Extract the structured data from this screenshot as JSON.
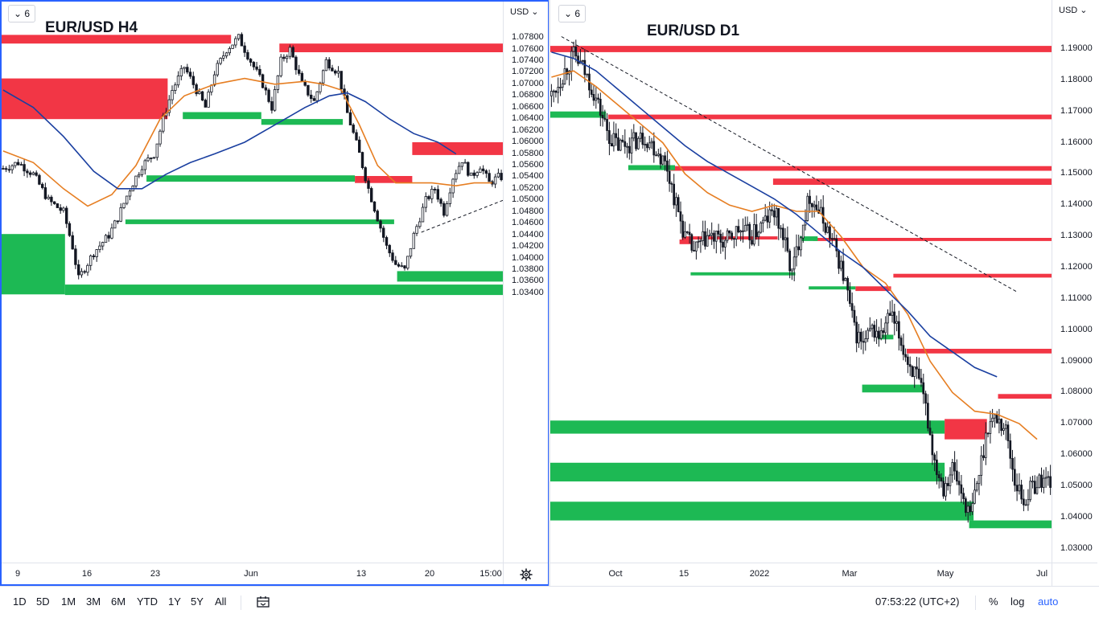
{
  "panels": {
    "left": {
      "interval": "6",
      "title": "EUR/USD H4",
      "currency": "USD",
      "y_ticks": [
        "1.07800",
        "1.07600",
        "1.07400",
        "1.07200",
        "1.07000",
        "1.06800",
        "1.06600",
        "1.06400",
        "1.06200",
        "1.06000",
        "1.05800",
        "1.05600",
        "1.05400",
        "1.05200",
        "1.05000",
        "1.04800",
        "1.04600",
        "1.04400",
        "1.04200",
        "1.04000",
        "1.03800",
        "1.03600",
        "1.03400"
      ],
      "x_ticks": [
        "9",
        "16",
        "23",
        "Jun",
        "13",
        "20",
        "15:00"
      ]
    },
    "right": {
      "interval": "6",
      "title": "EUR/USD D1",
      "currency": "USD",
      "y_ticks": [
        "1.19000",
        "1.18000",
        "1.17000",
        "1.16000",
        "1.15000",
        "1.14000",
        "1.13000",
        "1.12000",
        "1.11000",
        "1.10000",
        "1.09000",
        "1.08000",
        "1.07000",
        "1.06000",
        "1.05000",
        "1.04000",
        "1.03000"
      ],
      "x_ticks": [
        "Oct",
        "15",
        "2022",
        "Mar",
        "May",
        "Jul"
      ]
    }
  },
  "chart_data": [
    {
      "type": "candlestick",
      "title": "EUR/USD H4",
      "ylim": [
        1.0335,
        1.079
      ],
      "x_ticks": [
        "9",
        "16",
        "23",
        "Jun",
        "13",
        "20",
        "15:00"
      ],
      "price_path": [
        [
          0,
          1.0555
        ],
        [
          5,
          1.0565
        ],
        [
          10,
          1.0545
        ],
        [
          15,
          1.05
        ],
        [
          20,
          1.048
        ],
        [
          23,
          1.042
        ],
        [
          25,
          1.0365
        ],
        [
          30,
          1.041
        ],
        [
          35,
          1.044
        ],
        [
          38,
          1.047
        ],
        [
          42,
          1.052
        ],
        [
          46,
          1.056
        ],
        [
          50,
          1.058
        ],
        [
          53,
          1.064
        ],
        [
          56,
          1.069
        ],
        [
          60,
          1.073
        ],
        [
          63,
          1.07
        ],
        [
          67,
          1.066
        ],
        [
          70,
          1.072
        ],
        [
          74,
          1.076
        ],
        [
          78,
          1.078
        ],
        [
          82,
          1.074
        ],
        [
          86,
          1.07
        ],
        [
          89,
          1.066
        ],
        [
          92,
          1.074
        ],
        [
          95,
          1.076
        ],
        [
          99,
          1.07
        ],
        [
          103,
          1.067
        ],
        [
          107,
          1.074
        ],
        [
          111,
          1.072
        ],
        [
          114,
          1.065
        ],
        [
          118,
          1.058
        ],
        [
          121,
          1.052
        ],
        [
          124,
          1.047
        ],
        [
          127,
          1.042
        ],
        [
          130,
          1.039
        ],
        [
          133,
          1.038
        ],
        [
          136,
          1.044
        ],
        [
          140,
          1.05
        ],
        [
          143,
          1.052
        ],
        [
          146,
          1.048
        ],
        [
          149,
          1.054
        ],
        [
          152,
          1.057
        ],
        [
          155,
          1.054
        ],
        [
          158,
          1.056
        ],
        [
          161,
          1.053
        ],
        [
          164,
          1.054
        ]
      ],
      "moving_averages": [
        {
          "color": "#e67e22",
          "values": [
            [
              0,
              1.0585
            ],
            [
              10,
              1.0565
            ],
            [
              20,
              1.052
            ],
            [
              28,
              1.049
            ],
            [
              36,
              1.051
            ],
            [
              44,
              1.056
            ],
            [
              52,
              1.064
            ],
            [
              60,
              1.068
            ],
            [
              70,
              1.07
            ],
            [
              80,
              1.071
            ],
            [
              90,
              1.07
            ],
            [
              100,
              1.0705
            ],
            [
              106,
              1.07
            ],
            [
              112,
              1.069
            ],
            [
              118,
              1.063
            ],
            [
              124,
              1.056
            ],
            [
              130,
              1.053
            ],
            [
              136,
              1.053
            ],
            [
              142,
              1.053
            ],
            [
              150,
              1.0525
            ],
            [
              156,
              1.053
            ],
            [
              162,
              1.053
            ]
          ]
        },
        {
          "color": "#1a3fa0",
          "values": [
            [
              0,
              1.069
            ],
            [
              10,
              1.066
            ],
            [
              20,
              1.061
            ],
            [
              30,
              1.055
            ],
            [
              38,
              1.052
            ],
            [
              46,
              1.052
            ],
            [
              54,
              1.0545
            ],
            [
              62,
              1.0565
            ],
            [
              70,
              1.058
            ],
            [
              80,
              1.06
            ],
            [
              90,
              1.063
            ],
            [
              100,
              1.066
            ],
            [
              108,
              1.068
            ],
            [
              114,
              1.0685
            ],
            [
              120,
              1.067
            ],
            [
              128,
              1.064
            ],
            [
              136,
              1.0615
            ],
            [
              144,
              1.06
            ],
            [
              150,
              1.058
            ]
          ]
        }
      ],
      "zones": [
        {
          "kind": "supply",
          "y1": 1.0785,
          "y2": 1.077,
          "x1": 0,
          "x2": 76
        },
        {
          "kind": "supply",
          "y1": 1.077,
          "y2": 1.0755,
          "x1": 92,
          "x2": 166
        },
        {
          "kind": "supply",
          "y1": 1.071,
          "y2": 1.064,
          "x1": 0,
          "x2": 55
        },
        {
          "kind": "supply",
          "y1": 1.06,
          "y2": 1.0578,
          "x1": 136,
          "x2": 166
        },
        {
          "kind": "supply",
          "y1": 1.0542,
          "y2": 1.053,
          "x1": 117,
          "x2": 136
        },
        {
          "kind": "demand",
          "y1": 1.0652,
          "y2": 1.064,
          "x1": 60,
          "x2": 86
        },
        {
          "kind": "demand",
          "y1": 1.064,
          "y2": 1.063,
          "x1": 86,
          "x2": 113
        },
        {
          "kind": "demand",
          "y1": 1.0543,
          "y2": 1.0532,
          "x1": 48,
          "x2": 117
        },
        {
          "kind": "demand",
          "y1": 1.0467,
          "y2": 1.0459,
          "x1": 41,
          "x2": 130
        },
        {
          "kind": "demand",
          "y1": 1.0442,
          "y2": 1.0338,
          "x1": 0,
          "x2": 21
        },
        {
          "kind": "demand",
          "y1": 1.0378,
          "y2": 1.036,
          "x1": 131,
          "x2": 166
        },
        {
          "kind": "demand",
          "y1": 1.0355,
          "y2": 1.0337,
          "x1": 21,
          "x2": 166
        }
      ],
      "trendlines": [
        {
          "x1": 139,
          "y1": 1.0445,
          "x2": 166,
          "y2": 1.05,
          "style": "dashed"
        }
      ],
      "n_candles": 166
    },
    {
      "type": "candlestick",
      "title": "EUR/USD D1",
      "ylim": [
        1.026,
        1.196
      ],
      "x_ticks": [
        "Oct",
        "15",
        "2022",
        "Mar",
        "May",
        "Jul"
      ],
      "price_path": [
        [
          0,
          1.175
        ],
        [
          6,
          1.183
        ],
        [
          10,
          1.188
        ],
        [
          14,
          1.184
        ],
        [
          18,
          1.178
        ],
        [
          22,
          1.17
        ],
        [
          26,
          1.162
        ],
        [
          30,
          1.159
        ],
        [
          36,
          1.16
        ],
        [
          42,
          1.162
        ],
        [
          48,
          1.157
        ],
        [
          52,
          1.152
        ],
        [
          56,
          1.14
        ],
        [
          60,
          1.13
        ],
        [
          64,
          1.125
        ],
        [
          70,
          1.13
        ],
        [
          78,
          1.128
        ],
        [
          84,
          1.132
        ],
        [
          90,
          1.13
        ],
        [
          96,
          1.135
        ],
        [
          100,
          1.138
        ],
        [
          104,
          1.13
        ],
        [
          108,
          1.118
        ],
        [
          112,
          1.132
        ],
        [
          116,
          1.143
        ],
        [
          120,
          1.138
        ],
        [
          124,
          1.132
        ],
        [
          128,
          1.125
        ],
        [
          132,
          1.115
        ],
        [
          136,
          1.1
        ],
        [
          140,
          1.095
        ],
        [
          144,
          1.1
        ],
        [
          148,
          1.098
        ],
        [
          152,
          1.105
        ],
        [
          156,
          1.098
        ],
        [
          160,
          1.09
        ],
        [
          164,
          1.085
        ],
        [
          168,
          1.075
        ],
        [
          172,
          1.058
        ],
        [
          176,
          1.05
        ],
        [
          180,
          1.056
        ],
        [
          184,
          1.048
        ],
        [
          188,
          1.04
        ],
        [
          192,
          1.054
        ],
        [
          196,
          1.07
        ],
        [
          200,
          1.072
        ],
        [
          204,
          1.068
        ],
        [
          208,
          1.052
        ],
        [
          212,
          1.045
        ],
        [
          216,
          1.05
        ],
        [
          220,
          1.052
        ]
      ],
      "moving_averages": [
        {
          "color": "#e67e22",
          "values": [
            [
              0,
              1.181
            ],
            [
              10,
              1.183
            ],
            [
              20,
              1.178
            ],
            [
              30,
              1.172
            ],
            [
              40,
              1.166
            ],
            [
              50,
              1.16
            ],
            [
              60,
              1.15
            ],
            [
              70,
              1.144
            ],
            [
              80,
              1.14
            ],
            [
              90,
              1.138
            ],
            [
              100,
              1.14
            ],
            [
              110,
              1.138
            ],
            [
              120,
              1.138
            ],
            [
              130,
              1.13
            ],
            [
              140,
              1.12
            ],
            [
              150,
              1.115
            ],
            [
              160,
              1.105
            ],
            [
              170,
              1.09
            ],
            [
              180,
              1.08
            ],
            [
              190,
              1.074
            ],
            [
              200,
              1.073
            ],
            [
              210,
              1.07
            ],
            [
              218,
              1.065
            ]
          ]
        },
        {
          "color": "#1a3fa0",
          "values": [
            [
              0,
              1.189
            ],
            [
              10,
              1.187
            ],
            [
              20,
              1.183
            ],
            [
              30,
              1.177
            ],
            [
              40,
              1.171
            ],
            [
              50,
              1.165
            ],
            [
              60,
              1.159
            ],
            [
              70,
              1.154
            ],
            [
              80,
              1.15
            ],
            [
              90,
              1.146
            ],
            [
              100,
              1.142
            ],
            [
              110,
              1.137
            ],
            [
              120,
              1.131
            ],
            [
              130,
              1.125
            ],
            [
              140,
              1.12
            ],
            [
              150,
              1.113
            ],
            [
              160,
              1.106
            ],
            [
              170,
              1.098
            ],
            [
              180,
              1.093
            ],
            [
              190,
              1.088
            ],
            [
              200,
              1.085
            ]
          ]
        }
      ],
      "zones": [
        {
          "kind": "supply",
          "y1": 1.191,
          "y2": 1.189,
          "x1": 0,
          "x2": 225
        },
        {
          "kind": "supply",
          "y1": 1.169,
          "y2": 1.1675,
          "x1": 26,
          "x2": 225
        },
        {
          "kind": "supply",
          "y1": 1.1525,
          "y2": 1.151,
          "x1": 54,
          "x2": 225
        },
        {
          "kind": "supply",
          "y1": 1.1485,
          "y2": 1.1465,
          "x1": 100,
          "x2": 225
        },
        {
          "kind": "supply",
          "y1": 1.1295,
          "y2": 1.1285,
          "x1": 118,
          "x2": 225
        },
        {
          "kind": "supply",
          "y1": 1.118,
          "y2": 1.1168,
          "x1": 154,
          "x2": 225
        },
        {
          "kind": "supply",
          "y1": 1.114,
          "y2": 1.1125,
          "x1": 137,
          "x2": 153
        },
        {
          "kind": "supply",
          "y1": 1.094,
          "y2": 1.0925,
          "x1": 160,
          "x2": 225
        },
        {
          "kind": "supply",
          "y1": 1.0795,
          "y2": 1.078,
          "x1": 201,
          "x2": 225
        },
        {
          "kind": "supply",
          "y1": 1.13,
          "y2": 1.129,
          "x1": 59,
          "x2": 102
        },
        {
          "kind": "supply",
          "y1": 1.129,
          "y2": 1.1275,
          "x1": 58,
          "x2": 64
        },
        {
          "kind": "supply",
          "y1": 1.0715,
          "y2": 1.065,
          "x1": 177,
          "x2": 196
        },
        {
          "kind": "demand",
          "y1": 1.17,
          "y2": 1.168,
          "x1": 0,
          "x2": 25
        },
        {
          "kind": "demand",
          "y1": 1.1528,
          "y2": 1.1512,
          "x1": 35,
          "x2": 56
        },
        {
          "kind": "demand",
          "y1": 1.1185,
          "y2": 1.1175,
          "x1": 63,
          "x2": 110
        },
        {
          "kind": "demand",
          "y1": 1.114,
          "y2": 1.113,
          "x1": 116,
          "x2": 137
        },
        {
          "kind": "demand",
          "y1": 1.13,
          "y2": 1.1285,
          "x1": 112,
          "x2": 120
        },
        {
          "kind": "demand",
          "y1": 1.0985,
          "y2": 1.097,
          "x1": 147,
          "x2": 154
        },
        {
          "kind": "demand",
          "y1": 1.0825,
          "y2": 1.08,
          "x1": 140,
          "x2": 168
        },
        {
          "kind": "demand",
          "y1": 1.071,
          "y2": 1.0668,
          "x1": 0,
          "x2": 177
        },
        {
          "kind": "demand",
          "y1": 1.0575,
          "y2": 1.0545,
          "x1": 0,
          "x2": 177
        },
        {
          "kind": "demand",
          "y1": 1.056,
          "y2": 1.0515,
          "x1": 0,
          "x2": 177
        },
        {
          "kind": "demand",
          "y1": 1.045,
          "y2": 1.039,
          "x1": 0,
          "x2": 190
        },
        {
          "kind": "demand",
          "y1": 1.039,
          "y2": 1.0365,
          "x1": 188,
          "x2": 225
        }
      ],
      "trendlines": [
        {
          "x1": 5,
          "y1": 1.194,
          "x2": 210,
          "y2": 1.112,
          "style": "dashed"
        }
      ],
      "n_candles": 225
    }
  ],
  "toolbar": {
    "ranges": [
      "1D",
      "5D",
      "1M",
      "3M",
      "6M",
      "YTD",
      "1Y",
      "5Y",
      "All"
    ],
    "clock": "07:53:22 (UTC+2)",
    "percent": "%",
    "log": "log",
    "auto": "auto"
  }
}
